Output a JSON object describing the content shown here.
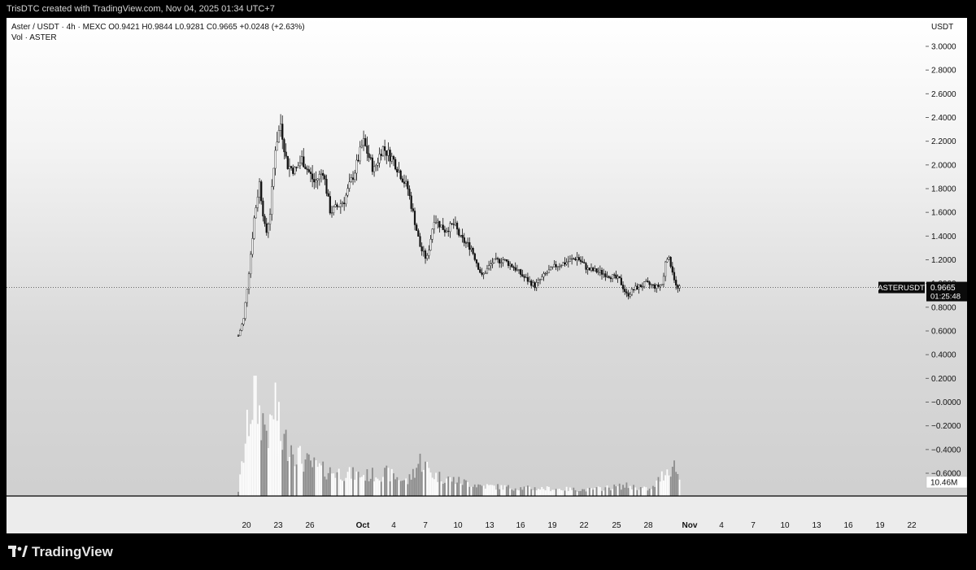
{
  "header": {
    "credit": "TrisDTC created with TradingView.com, Nov 04, 2025 01:34 UTC+7"
  },
  "legend": {
    "symbol_line": "Aster / USDT · 4h · MEXC  O0.9421 H0.9844 L0.9281 C0.9665 +0.0248 (+2.63%)",
    "volume_line": "Vol · ASTER"
  },
  "footer": {
    "brand": "TradingView"
  },
  "colors": {
    "background": "#000000",
    "candle": "#111111",
    "volume_light": "#ffffff",
    "volume_dark": "#8c8c8c",
    "price_tag": "#0b0b0b"
  },
  "chart_data": {
    "type": "candlestick",
    "symbol": "ASTERUSDT",
    "timeframe": "4h",
    "exchange": "MEXC",
    "y_axis_unit": "USDT",
    "y_ticks": [
      "3.0000",
      "2.8000",
      "2.6000",
      "2.4000",
      "2.2000",
      "2.0000",
      "1.8000",
      "1.6000",
      "1.4000",
      "1.2000",
      "1.0000",
      "0.8000",
      "0.6000",
      "0.4000",
      "0.2000",
      "−0.0000",
      "−0.2000",
      "−0.4000",
      "−0.6000"
    ],
    "ylim": [
      -0.6,
      3.0
    ],
    "x_ticks": [
      "20",
      "23",
      "26",
      "Oct",
      "4",
      "7",
      "10",
      "13",
      "16",
      "19",
      "22",
      "25",
      "28",
      "Nov",
      "4",
      "7",
      "10",
      "13",
      "16",
      "19",
      "22"
    ],
    "last_price": {
      "symbol_label": "ASTERUSDT",
      "value": "0.9665",
      "countdown": "01:25:48"
    },
    "ohlc_last": {
      "open": 0.9421,
      "high": 0.9844,
      "low": 0.9281,
      "close": 0.9665,
      "change": 0.0248,
      "change_pct": "+2.63%"
    },
    "volume_last": "10.46M",
    "close_path": [
      {
        "day": 0,
        "close": 0.56
      },
      {
        "day": 0.5,
        "close": 0.7
      },
      {
        "day": 1,
        "close": 1.1
      },
      {
        "day": 1.5,
        "close": 1.55
      },
      {
        "day": 2,
        "close": 1.85
      },
      {
        "day": 2.6,
        "close": 1.4
      },
      {
        "day": 3,
        "close": 1.6
      },
      {
        "day": 3.5,
        "close": 2.15
      },
      {
        "day": 4,
        "close": 2.35
      },
      {
        "day": 4.6,
        "close": 2.0
      },
      {
        "day": 5.4,
        "close": 1.95
      },
      {
        "day": 6,
        "close": 2.05
      },
      {
        "day": 7.2,
        "close": 1.85
      },
      {
        "day": 8,
        "close": 1.95
      },
      {
        "day": 8.7,
        "close": 1.6
      },
      {
        "day": 10,
        "close": 1.7
      },
      {
        "day": 11,
        "close": 1.95
      },
      {
        "day": 11.8,
        "close": 2.2
      },
      {
        "day": 12.8,
        "close": 1.95
      },
      {
        "day": 13.6,
        "close": 2.15
      },
      {
        "day": 14.6,
        "close": 2.05
      },
      {
        "day": 16,
        "close": 1.8
      },
      {
        "day": 16.6,
        "close": 1.55
      },
      {
        "day": 17.2,
        "close": 1.3
      },
      {
        "day": 17.8,
        "close": 1.2
      },
      {
        "day": 18.5,
        "close": 1.55
      },
      {
        "day": 19.5,
        "close": 1.45
      },
      {
        "day": 20.4,
        "close": 1.5
      },
      {
        "day": 21,
        "close": 1.38
      },
      {
        "day": 22,
        "close": 1.3
      },
      {
        "day": 23,
        "close": 1.06
      },
      {
        "day": 24,
        "close": 1.18
      },
      {
        "day": 25,
        "close": 1.2
      },
      {
        "day": 26,
        "close": 1.14
      },
      {
        "day": 27,
        "close": 1.05
      },
      {
        "day": 28,
        "close": 0.98
      },
      {
        "day": 29,
        "close": 1.08
      },
      {
        "day": 30,
        "close": 1.15
      },
      {
        "day": 31,
        "close": 1.18
      },
      {
        "day": 32,
        "close": 1.22
      },
      {
        "day": 33,
        "close": 1.12
      },
      {
        "day": 34,
        "close": 1.1
      },
      {
        "day": 35,
        "close": 1.07
      },
      {
        "day": 36,
        "close": 1.03
      },
      {
        "day": 36.7,
        "close": 0.9
      },
      {
        "day": 37.5,
        "close": 0.96
      },
      {
        "day": 38.5,
        "close": 1.0
      },
      {
        "day": 39.5,
        "close": 0.97
      },
      {
        "day": 40.1,
        "close": 1.0
      },
      {
        "day": 40.4,
        "close": 1.25
      },
      {
        "day": 40.9,
        "close": 1.15
      },
      {
        "day": 41.4,
        "close": 0.95
      },
      {
        "day": 41.8,
        "close": 0.9665
      }
    ],
    "volume_series": [
      {
        "day": 0,
        "volume": 0.05
      },
      {
        "day": 0.5,
        "volume": 0.4
      },
      {
        "day": 1,
        "volume": 0.75
      },
      {
        "day": 1.5,
        "volume": 1.0
      },
      {
        "day": 2,
        "volume": 0.8
      },
      {
        "day": 3,
        "volume": 0.6
      },
      {
        "day": 3.5,
        "volume": 0.95
      },
      {
        "day": 4,
        "volume": 0.55
      },
      {
        "day": 5,
        "volume": 0.5
      },
      {
        "day": 6,
        "volume": 0.35
      },
      {
        "day": 8,
        "volume": 0.25
      },
      {
        "day": 10,
        "volume": 0.22
      },
      {
        "day": 12,
        "volume": 0.2
      },
      {
        "day": 14,
        "volume": 0.22
      },
      {
        "day": 16,
        "volume": 0.14
      },
      {
        "day": 17.2,
        "volume": 0.35
      },
      {
        "day": 18.5,
        "volume": 0.2
      },
      {
        "day": 21,
        "volume": 0.14
      },
      {
        "day": 23,
        "volume": 0.1
      },
      {
        "day": 26,
        "volume": 0.08
      },
      {
        "day": 30,
        "volume": 0.07
      },
      {
        "day": 33,
        "volume": 0.06
      },
      {
        "day": 36.7,
        "volume": 0.1
      },
      {
        "day": 39,
        "volume": 0.06
      },
      {
        "day": 40.4,
        "volume": 0.25
      },
      {
        "day": 41.3,
        "volume": 0.3
      },
      {
        "day": 41.8,
        "volume": 0.1
      }
    ]
  }
}
